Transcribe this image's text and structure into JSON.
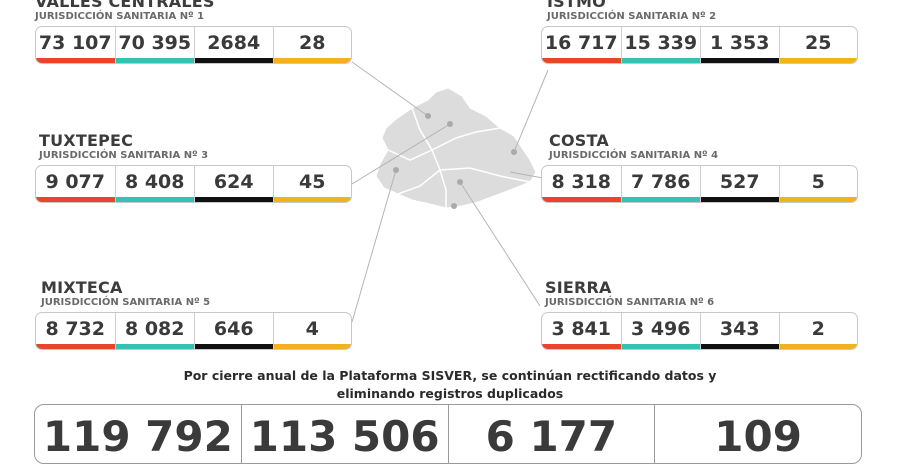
{
  "colors": {
    "red": "#e8452c",
    "teal": "#35c2b4",
    "black": "#111111",
    "yellow": "#f1b21f"
  },
  "regions": [
    {
      "name": "VALLES CENTRALES",
      "sub": "JURISDICCIÓN SANITARIA Nº 1",
      "values": [
        "73 107",
        "70 395",
        "2684",
        "28"
      ]
    },
    {
      "name": "ISTMO",
      "sub": "JURISDICCIÓN SANITARIA Nº 2",
      "values": [
        "16 717",
        "15 339",
        "1 353",
        "25"
      ]
    },
    {
      "name": "TUXTEPEC",
      "sub": "JURISDICCIÓN SANITARIA Nº 3",
      "values": [
        "9 077",
        "8 408",
        "624",
        "45"
      ]
    },
    {
      "name": "COSTA",
      "sub": "JURISDICCIÓN SANITARIA Nº 4",
      "values": [
        "8 318",
        "7 786",
        "527",
        "5"
      ]
    },
    {
      "name": "MIXTECA",
      "sub": "JURISDICCIÓN SANITARIA Nº 5",
      "values": [
        "8 732",
        "8 082",
        "646",
        "4"
      ]
    },
    {
      "name": "SIERRA",
      "sub": "JURISDICCIÓN SANITARIA Nº 6",
      "values": [
        "3 841",
        "3 496",
        "343",
        "2"
      ]
    }
  ],
  "note": {
    "line1": "Por cierre anual de la Plataforma SISVER, se continúan rectificando datos y",
    "line2": "eliminando registros duplicados"
  },
  "totals": [
    "119 792",
    "113 506",
    "6 177",
    "109"
  ]
}
